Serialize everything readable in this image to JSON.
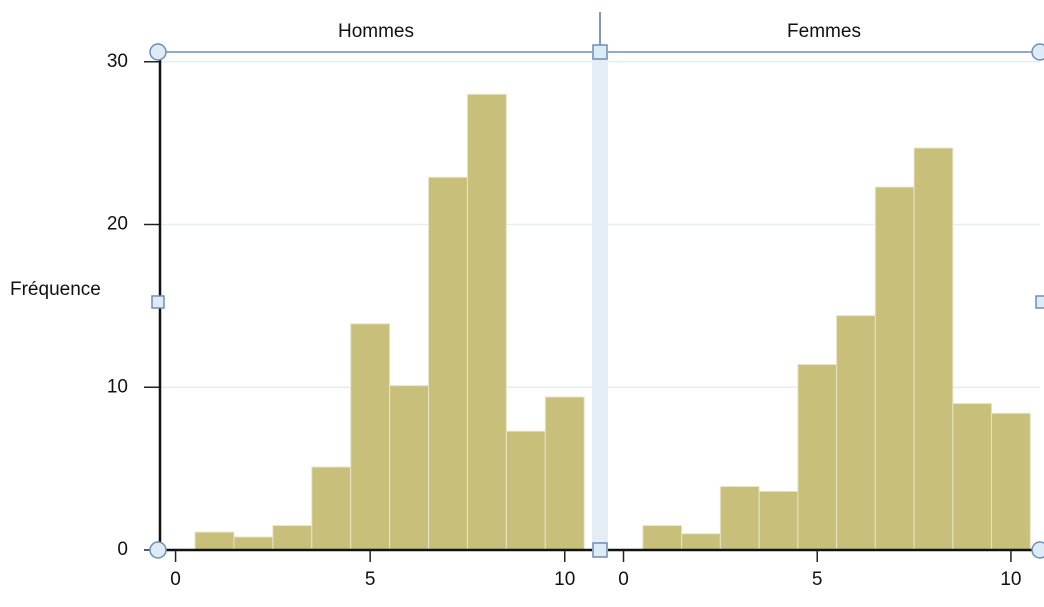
{
  "chart_data": [
    {
      "type": "histogram",
      "title": "Hommes",
      "y_label": "Fréquence",
      "bins": [
        0.5,
        1.5,
        2.5,
        3.5,
        4.5,
        5.5,
        6.5,
        7.5,
        8.5,
        9.5,
        10.5
      ],
      "values": [
        1.1,
        0.8,
        1.5,
        5.1,
        13.9,
        10.1,
        22.9,
        28.0,
        7.3,
        9.4
      ],
      "color": "#c8bf7a",
      "xlim": [
        -0.4,
        10.7
      ],
      "ylim": [
        0,
        30.6
      ],
      "xticks": [
        0,
        5,
        10
      ],
      "yticks": [
        0,
        10,
        20,
        30
      ],
      "grid": true,
      "show_ytick_labels": true
    },
    {
      "type": "histogram",
      "title": "Femmes",
      "bins": [
        0.5,
        1.5,
        2.5,
        3.5,
        4.5,
        5.5,
        6.5,
        7.5,
        8.5,
        9.5,
        10.5
      ],
      "values": [
        1.5,
        1.0,
        3.9,
        3.6,
        11.4,
        14.4,
        22.3,
        24.7,
        9.0,
        8.4
      ],
      "color": "#c8bf7a",
      "xlim": [
        -0.4,
        10.75
      ],
      "ylim": [
        0,
        30.6
      ],
      "xticks": [
        0,
        5,
        10
      ],
      "yticks": [
        0,
        10,
        20,
        30
      ],
      "grid": true,
      "show_ytick_labels": false
    }
  ]
}
